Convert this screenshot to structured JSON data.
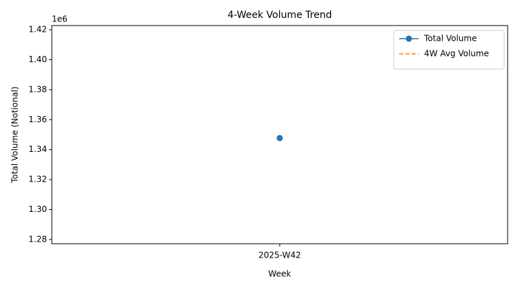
{
  "chart_data": {
    "type": "line",
    "title": "4-Week Volume Trend",
    "x_label": "Week",
    "y_label": "Total Volume (Notional)",
    "y_offset_label": "1e6",
    "categories": [
      "2025-W42"
    ],
    "series": [
      {
        "name": "Total Volume",
        "color": "#1f77b4",
        "values": [
          1347700
        ],
        "marker": "circle",
        "linestyle": "solid"
      },
      {
        "name": "4W Avg Volume",
        "color": "#ff7f0e",
        "values": [
          1347700
        ],
        "marker": "none",
        "linestyle": "dashed"
      }
    ],
    "ylim": [
      1277200,
      1422800
    ],
    "yticks": [
      {
        "value": 1280000,
        "label": "1.28"
      },
      {
        "value": 1300000,
        "label": "1.30"
      },
      {
        "value": 1320000,
        "label": "1.32"
      },
      {
        "value": 1340000,
        "label": "1.34"
      },
      {
        "value": 1360000,
        "label": "1.36"
      },
      {
        "value": 1380000,
        "label": "1.38"
      },
      {
        "value": 1400000,
        "label": "1.40"
      },
      {
        "value": 1420000,
        "label": "1.42"
      }
    ],
    "grid": false,
    "legend": "upper right"
  }
}
